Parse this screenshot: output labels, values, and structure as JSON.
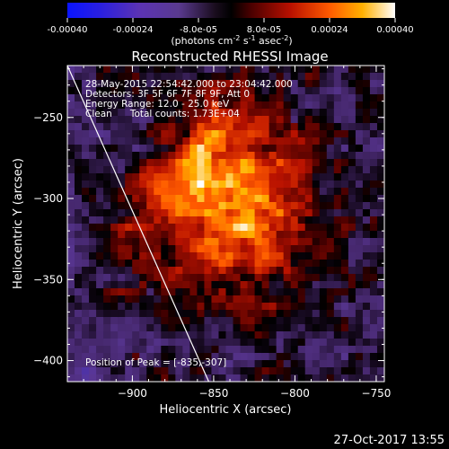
{
  "colorbar": {
    "ticks": [
      "-0.00040",
      "-0.00024",
      "-8.0e-05",
      "8.0e-05",
      "0.00024",
      "0.00040"
    ],
    "units_base": "(photons cm",
    "units_exp1": "-2",
    "units_mid1": " s",
    "units_exp2": "-1",
    "units_mid2": " asec",
    "units_exp3": "-2",
    "units_end": ")"
  },
  "chart_data": {
    "type": "heatmap",
    "title": "Reconstructed RHESSI Image",
    "xlabel": "Heliocentric X (arcsec)",
    "ylabel": "Heliocentric Y (arcsec)",
    "xlim": [
      -940,
      -745
    ],
    "ylim": [
      -413,
      -218
    ],
    "xticks": [
      -900,
      -850,
      -800,
      -750
    ],
    "yticks": [
      -250,
      -300,
      -350,
      -400
    ],
    "xtick_labels": [
      "−900",
      "−850",
      "−800",
      "−750"
    ],
    "ytick_labels": [
      "−250",
      "−300",
      "−350",
      "−400"
    ],
    "colormap_range": [
      -0.0004,
      0.0004
    ],
    "annotations": [
      "28-May-2015 22:54:42.000 to 23:04:42.000",
      "Detectors: 3F 5F 6F 7F 8F 9F, Att 0",
      "Energy Range: 12.0 - 25.0 keV",
      "Clean      Total counts: 1.73E+04"
    ],
    "peak_label": "Position of Peak = [-835,-307]",
    "peak": [
      -835,
      -307
    ],
    "limb_line": [
      [
        -940,
        -218
      ],
      [
        -853,
        -413
      ]
    ]
  },
  "footer": {
    "timestamp": "27-Oct-2017 13:55"
  }
}
